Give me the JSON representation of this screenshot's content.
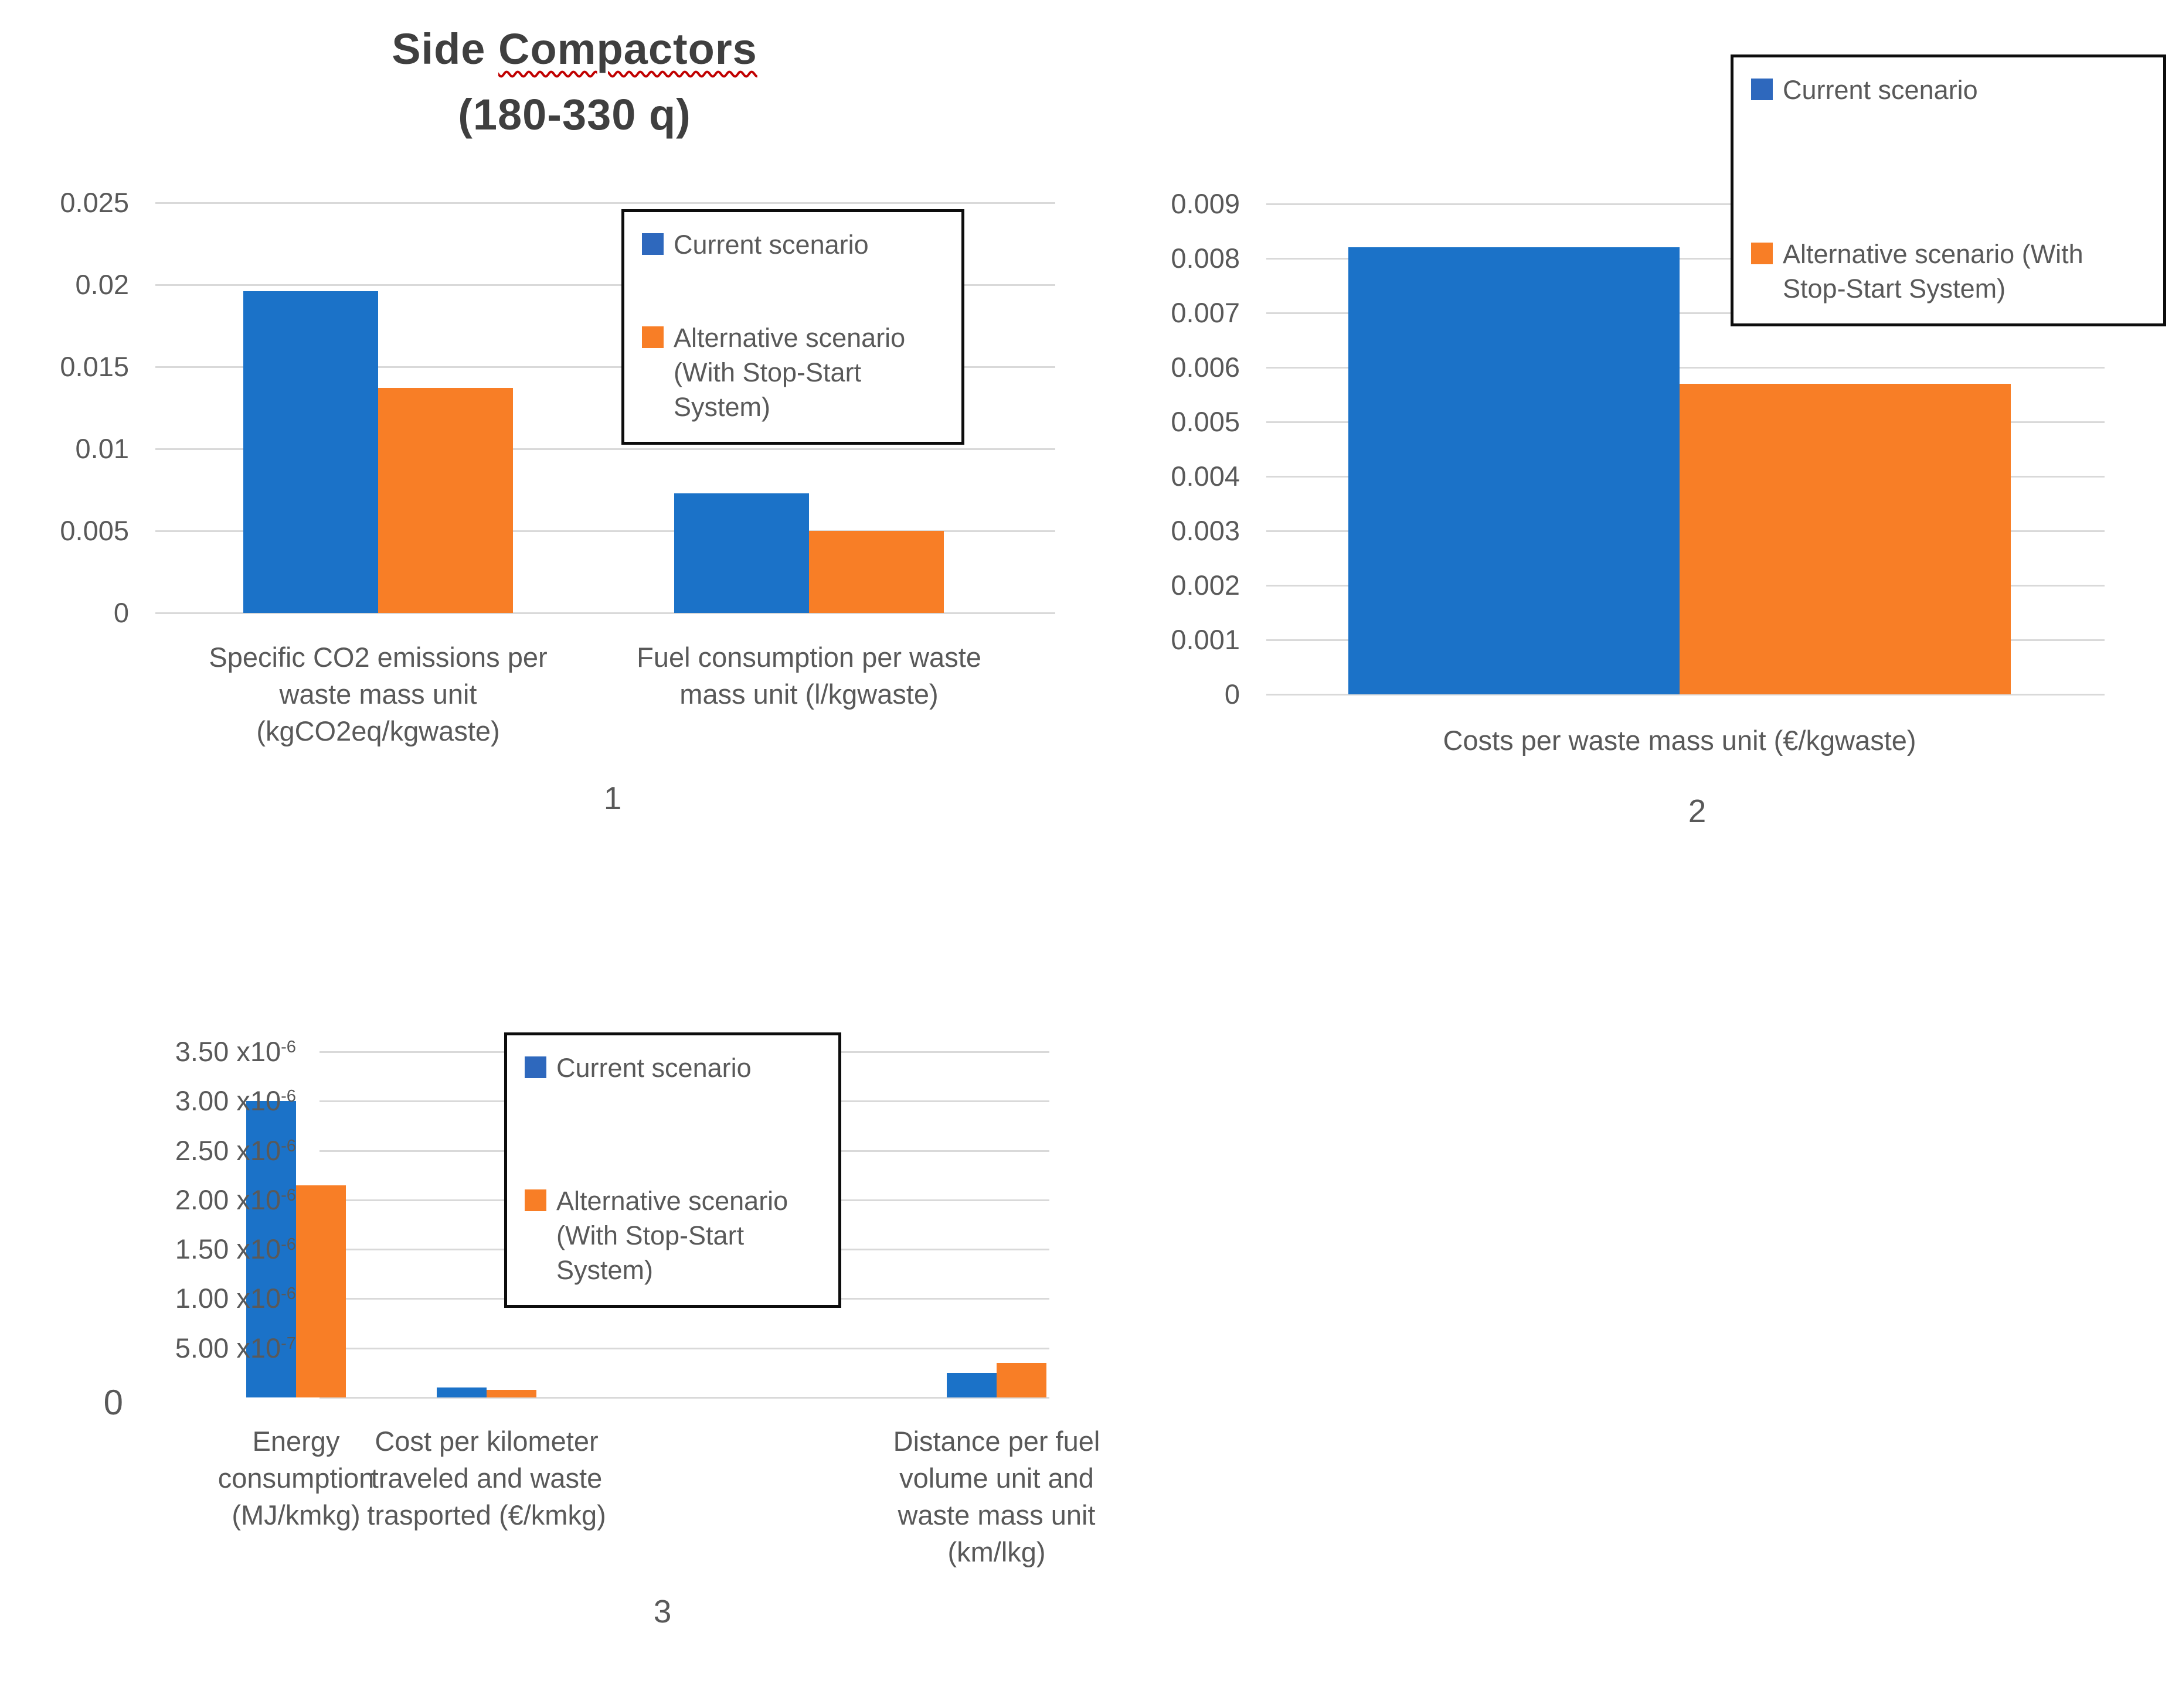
{
  "colors": {
    "current": "#1b72c8",
    "alternative": "#f87e26",
    "grid": "#d9d9d9",
    "axis_text": "#595959",
    "title_text": "#3f3f3f",
    "legend_border": "#0d0d0d",
    "spellcheck_underline": "#c00000"
  },
  "title": {
    "pre": "Side",
    "underlined": "Compactors",
    "line2": "(180-330 q)"
  },
  "legend": {
    "current_label": "Current scenario",
    "alt_label_3line": "Alternative scenario\n(With Stop-Start\nSystem)",
    "alt_label_2line": "Alternative scenario (With\nStop-Start System)"
  },
  "captions": {
    "chart1": "1",
    "chart2": "2",
    "chart3": "3"
  },
  "chart_data": [
    {
      "type": "bar",
      "title": "Side Compactors (180-330 q)",
      "categories": [
        "Specific CO2 emissions per waste mass unit (kgCO2eq/kgwaste)",
        "Fuel consumption per waste mass unit (l/kgwaste)"
      ],
      "xlabel_lines": [
        [
          "Specific CO2 emissions per",
          "waste mass unit",
          "(kgCO2eq/kgwaste)"
        ],
        [
          "Fuel consumption per waste",
          "mass unit (l/kgwaste)"
        ]
      ],
      "series": [
        {
          "name": "Current scenario",
          "values": [
            0.0196,
            0.0073
          ]
        },
        {
          "name": "Alternative scenario (With Stop-Start System)",
          "values": [
            0.0137,
            0.005
          ]
        }
      ],
      "ylim": [
        0,
        0.025
      ],
      "yticks": [
        {
          "t": "0.025"
        },
        {
          "t": "0.02"
        },
        {
          "t": "0.015"
        },
        {
          "t": "0.01"
        },
        {
          "t": "0.005"
        },
        {
          "t": "0"
        }
      ],
      "grid": true,
      "legend_position": "inside-top-right",
      "caption": "1"
    },
    {
      "type": "bar",
      "title": "",
      "categories": [
        "Costs per waste mass unit (€/kgwaste)"
      ],
      "xlabel_lines": [
        [
          "Costs per waste mass unit (€/kgwaste)"
        ]
      ],
      "series": [
        {
          "name": "Current scenario",
          "values": [
            0.0082
          ]
        },
        {
          "name": "Alternative scenario (With Stop-Start System)",
          "values": [
            0.0057
          ]
        }
      ],
      "ylim": [
        0,
        0.009
      ],
      "yticks": [
        {
          "t": "0.009"
        },
        {
          "t": "0.008"
        },
        {
          "t": "0.007"
        },
        {
          "t": "0.006"
        },
        {
          "t": "0.005"
        },
        {
          "t": "0.004"
        },
        {
          "t": "0.003"
        },
        {
          "t": "0.002"
        },
        {
          "t": "0.001"
        },
        {
          "t": "0"
        }
      ],
      "grid": true,
      "legend_position": "outside-top-right",
      "caption": "2"
    },
    {
      "type": "bar",
      "title": "",
      "categories": [
        "Energy consumption (MJ/kmkg)",
        "Cost per kilometer traveled and waste trasported (€/kmkg)",
        "Distance per fuel volume unit and waste mass unit (km/lkg)"
      ],
      "xlabel_lines": [
        [
          "Energy",
          "consumption",
          "(MJ/kmkg)"
        ],
        [
          "Cost per kilometer",
          "traveled and waste",
          "trasported (€/kmkg)"
        ],
        [
          "Distance per fuel",
          "volume unit and",
          "waste mass unit",
          "(km/lkg)"
        ]
      ],
      "series": [
        {
          "name": "Current scenario",
          "values": [
            3e-06,
            1e-07,
            2.5e-07
          ]
        },
        {
          "name": "Alternative scenario (With Stop-Start System)",
          "values": [
            2.15e-06,
            8e-08,
            3.5e-07
          ]
        }
      ],
      "ylim": [
        0,
        3.5e-06
      ],
      "yticks": [
        {
          "t": "3.50 x10",
          "s": "-6"
        },
        {
          "t": "3.00 x10",
          "s": "-6"
        },
        {
          "t": "2.50 x10",
          "s": "-6"
        },
        {
          "t": "2.00 x10",
          "s": "-6"
        },
        {
          "t": "1.50 x10",
          "s": "-6"
        },
        {
          "t": "1.00 x10",
          "s": "-6"
        },
        {
          "t": "5.00 x10",
          "s": "-7"
        },
        {
          "t": "0",
          "big": true
        }
      ],
      "grid": true,
      "legend_position": "inside-top-right",
      "caption": "3"
    }
  ]
}
